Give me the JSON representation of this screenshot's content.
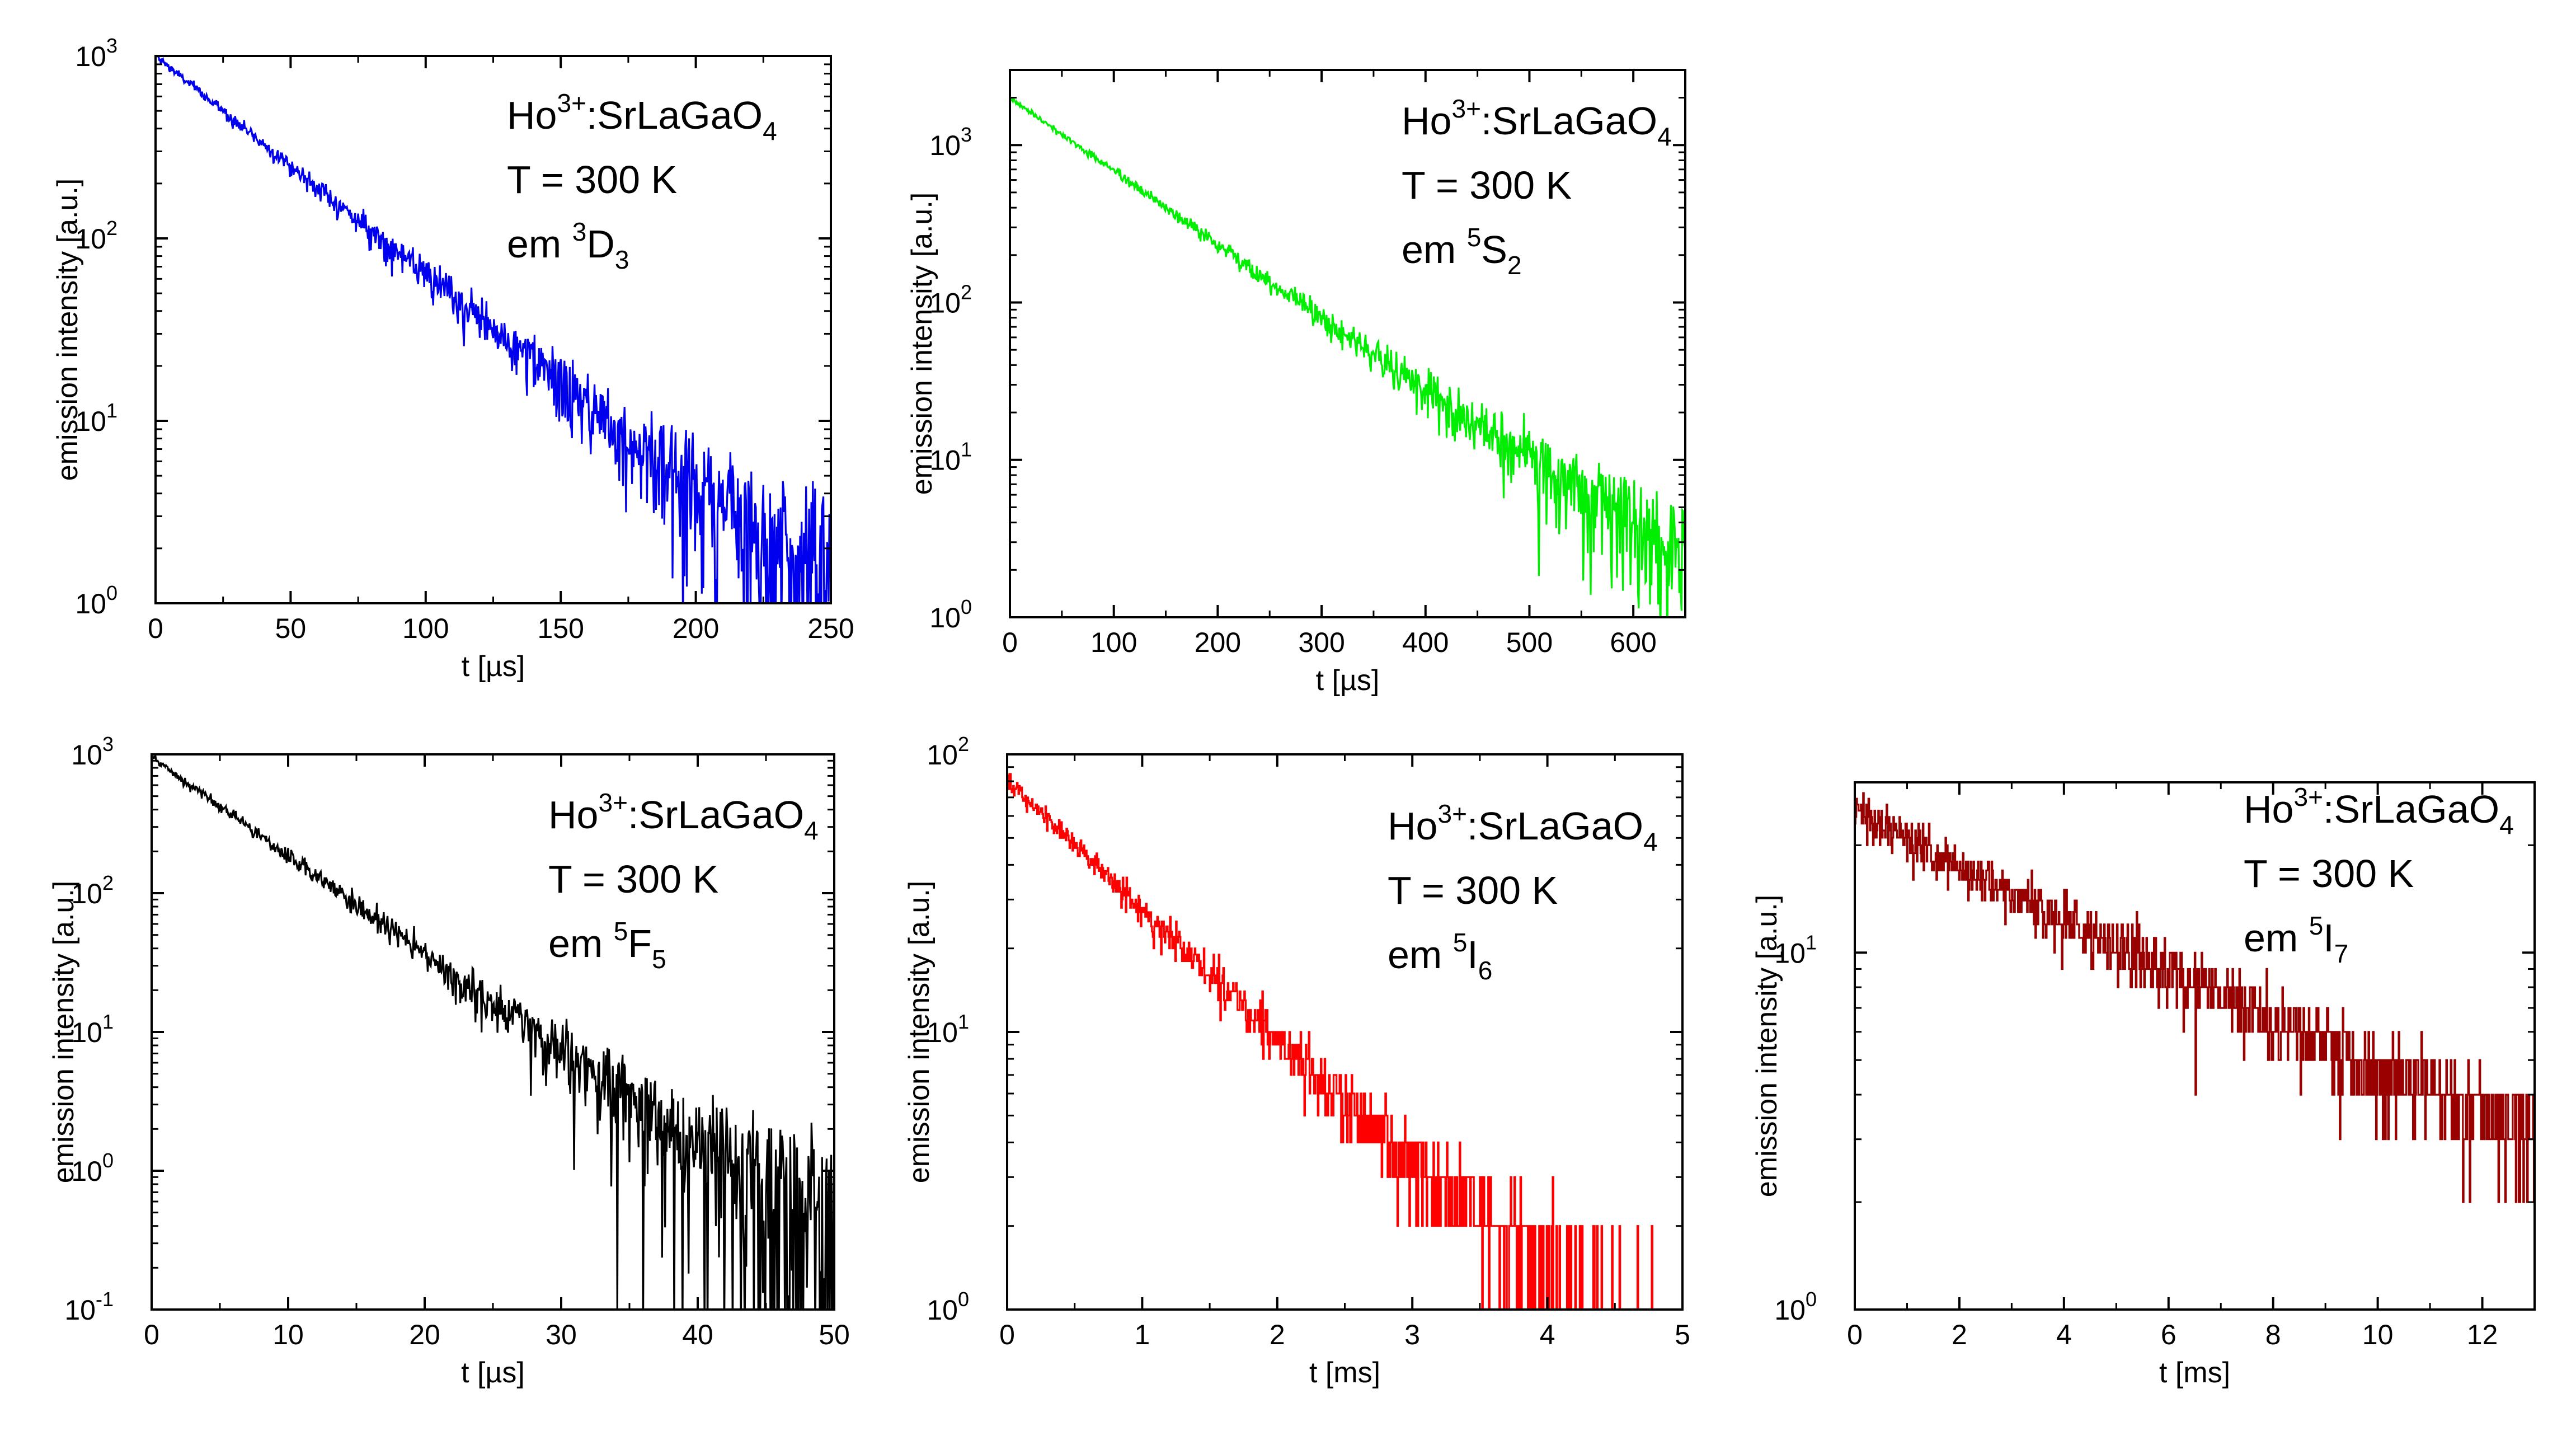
{
  "chart_data": [
    {
      "type": "line",
      "xlabel": "t [µs]",
      "ylabel": "emission intensity [a.u.]",
      "xlim": [
        0,
        250
      ],
      "ylim": [
        1,
        1000
      ],
      "yscale": "log",
      "xticks": [
        "0",
        "50",
        "100",
        "150",
        "200",
        "250"
      ],
      "yticks": [
        {
          "base": "10",
          "exp": "0"
        },
        {
          "base": "10",
          "exp": "1"
        },
        {
          "base": "10",
          "exp": "2"
        },
        {
          "base": "10",
          "exp": "3"
        }
      ],
      "annotation": {
        "line1": {
          "pre": "Ho",
          "sup": "3+",
          "post": ":SrLaGaO",
          "sub": "4"
        },
        "line2": "T = 300 K",
        "line3": {
          "pre": "em ",
          "sup": "3",
          "main": "D",
          "sub": "3"
        }
      },
      "series": [
        {
          "color": "#0000ee",
          "tau": 36,
          "x": [
            0,
            25,
            50,
            75,
            100,
            125,
            150,
            175,
            200,
            225,
            250
          ],
          "y": [
            1000,
            500,
            250,
            125,
            63,
            30,
            15,
            7.5,
            3.8,
            2,
            1.5
          ]
        }
      ],
      "grid": false
    },
    {
      "type": "line",
      "xlabel": "t [µs]",
      "ylabel": "emission intensity [a.u.]",
      "xlim": [
        0,
        650
      ],
      "ylim": [
        1,
        3000
      ],
      "yscale": "log",
      "xticks": [
        "0",
        "100",
        "200",
        "300",
        "400",
        "500",
        "600"
      ],
      "yticks": [
        {
          "base": "10",
          "exp": "0"
        },
        {
          "base": "10",
          "exp": "1"
        },
        {
          "base": "10",
          "exp": "2"
        },
        {
          "base": "10",
          "exp": "3"
        }
      ],
      "annotation": {
        "line1": {
          "pre": "Ho",
          "sup": "3+",
          "post": ":SrLaGaO",
          "sub": "4"
        },
        "line2": "T = 300 K",
        "line3": {
          "pre": "em ",
          "sup": "5",
          "main": "S",
          "sub": "2"
        }
      },
      "series": [
        {
          "color": "#00ee00",
          "tau": 93,
          "x": [
            0,
            100,
            200,
            300,
            400,
            500,
            600,
            650
          ],
          "y": [
            2000,
            700,
            230,
            80,
            27,
            9,
            3,
            2
          ]
        }
      ],
      "grid": false
    },
    {
      "type": "line",
      "xlabel": "t [µs]",
      "ylabel": "emission intensity [a.u.]",
      "xlim": [
        0,
        50
      ],
      "ylim": [
        0.1,
        1000
      ],
      "yscale": "log",
      "xticks": [
        "0",
        "10",
        "20",
        "30",
        "40",
        "50"
      ],
      "yticks": [
        {
          "base": "10",
          "exp": "-1"
        },
        {
          "base": "10",
          "exp": "0"
        },
        {
          "base": "10",
          "exp": "1"
        },
        {
          "base": "10",
          "exp": "2"
        },
        {
          "base": "10",
          "exp": "3"
        }
      ],
      "annotation": {
        "line1": {
          "pre": "Ho",
          "sup": "3+",
          "post": ":SrLaGaO",
          "sub": "4"
        },
        "line2": "T = 300 K",
        "line3": {
          "pre": "em ",
          "sup": "5",
          "main": "F",
          "sub": "5"
        }
      },
      "series": [
        {
          "color": "#000000",
          "tau": 6.1,
          "x": [
            0,
            10,
            20,
            30,
            40,
            50
          ],
          "y": [
            950,
            180,
            35,
            7,
            1.3,
            0.5
          ]
        }
      ],
      "grid": false
    },
    {
      "type": "line",
      "xlabel": "t [ms]",
      "ylabel": "emission intensity [a.u.]",
      "xlim": [
        0,
        5
      ],
      "ylim": [
        1,
        100
      ],
      "yscale": "log",
      "xticks": [
        "0",
        "1",
        "2",
        "3",
        "4",
        "5"
      ],
      "yticks": [
        {
          "base": "10",
          "exp": "0"
        },
        {
          "base": "10",
          "exp": "1"
        },
        {
          "base": "10",
          "exp": "2"
        }
      ],
      "annotation": {
        "line1": {
          "pre": "Ho",
          "sup": "3+",
          "post": ":SrLaGaO",
          "sub": "4"
        },
        "line2": "T = 300 K",
        "line3": {
          "pre": "em ",
          "sup": "5",
          "main": "I",
          "sub": "6"
        }
      },
      "series": [
        {
          "color": "#ff0000",
          "tau": 0.92,
          "x": [
            0,
            1,
            2,
            3,
            4,
            4.9
          ],
          "y": [
            80,
            27,
            9.5,
            3.2,
            1.5,
            1.2
          ]
        }
      ],
      "grid": false
    },
    {
      "type": "line",
      "xlabel": "t [ms]",
      "ylabel": "emission intensity [a.u.]",
      "xlim": [
        0,
        13
      ],
      "ylim": [
        1,
        30
      ],
      "yscale": "log",
      "xticks": [
        "0",
        "2",
        "4",
        "6",
        "8",
        "10",
        "12"
      ],
      "yticks": [
        {
          "base": "10",
          "exp": "0"
        },
        {
          "base": "10",
          "exp": "1"
        }
      ],
      "annotation": {
        "line1": {
          "pre": "Ho",
          "sup": "3+",
          "post": ":SrLaGaO",
          "sub": "4"
        },
        "line2": "T = 300 K",
        "line3": {
          "pre": "em ",
          "sup": "5",
          "main": "I",
          "sub": "7"
        }
      },
      "series": [
        {
          "color": "#990000",
          "tau": 5.5,
          "x": [
            0,
            2,
            4,
            6,
            8,
            10,
            12,
            13
          ],
          "y": [
            24,
            16,
            11,
            6,
            4,
            2.8,
            2.2,
            2.2
          ]
        }
      ],
      "grid": false
    }
  ]
}
